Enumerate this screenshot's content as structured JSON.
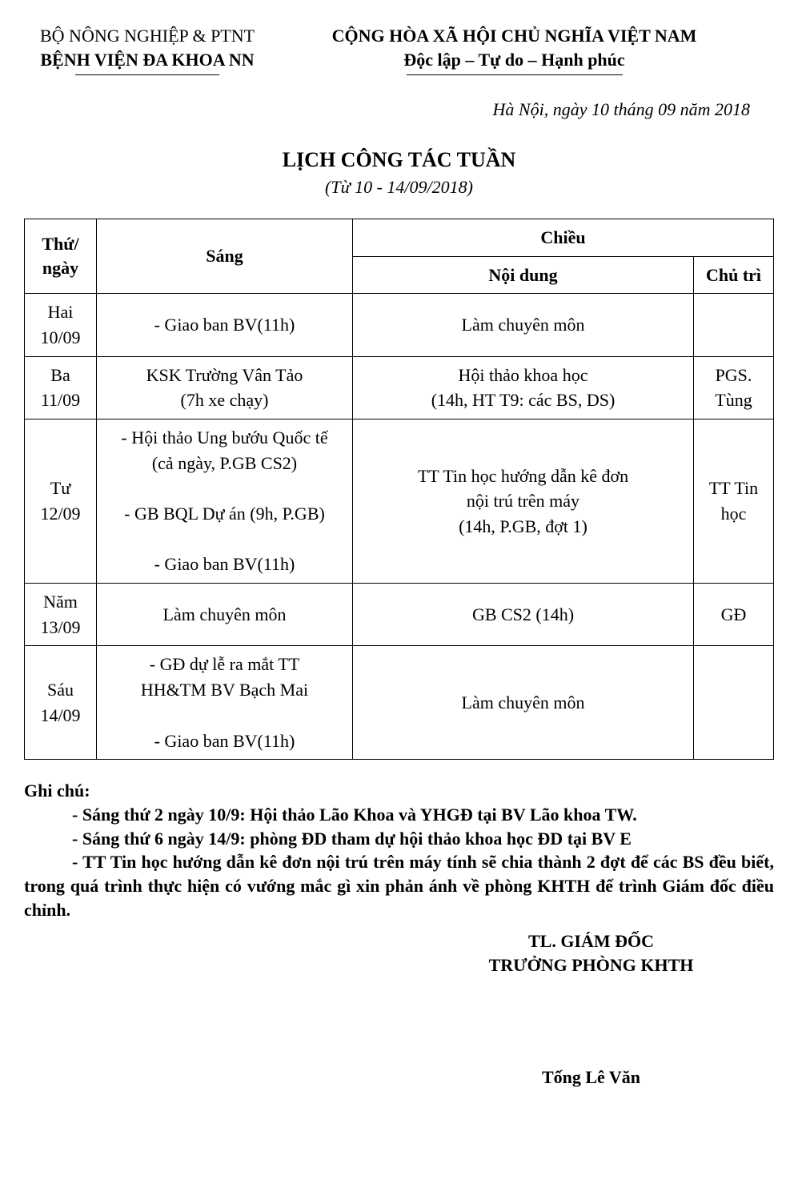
{
  "header": {
    "left_line1": "BỘ NÔNG NGHIỆP & PTNT",
    "left_line2": "BỆNH VIỆN ĐA KHOA NN",
    "right_line1": "CỘNG HÒA XÃ HỘI CHỦ NGHĨA VIỆT NAM",
    "right_line2": "Độc lập – Tự do – Hạnh phúc"
  },
  "date_line": "Hà Nội, ngày 10 tháng 09 năm 2018",
  "title": "LỊCH CÔNG TÁC TUẦN",
  "subtitle": "(Từ 10 - 14/09/2018)",
  "table": {
    "headers": {
      "day": "Thứ/ ngày",
      "sang": "Sáng",
      "chieu": "Chiều",
      "noidung": "Nội dung",
      "chutri": "Chủ trì"
    },
    "rows": [
      {
        "day_l1": "Hai",
        "day_l2": "10/09",
        "sang": [
          "- Giao ban BV(11h)"
        ],
        "noidung": [
          "Làm chuyên môn"
        ],
        "chutri": [
          ""
        ]
      },
      {
        "day_l1": "Ba",
        "day_l2": "11/09",
        "sang": [
          "KSK Trường Vân Tảo",
          "(7h xe chạy)"
        ],
        "noidung": [
          "Hội thảo khoa học",
          "(14h, HT T9: các BS, DS)"
        ],
        "chutri": [
          "PGS.",
          "Tùng"
        ]
      },
      {
        "day_l1": "Tư",
        "day_l2": "12/09",
        "sang": [
          "- Hội thảo Ung bướu Quốc tế",
          "(cả ngày, P.GB CS2)",
          "",
          "- GB BQL Dự án (9h, P.GB)",
          "",
          "- Giao ban BV(11h)"
        ],
        "noidung": [
          "TT Tin học hướng dẫn kê đơn",
          "nội trú trên máy",
          "(14h, P.GB, đợt 1)"
        ],
        "chutri": [
          "TT Tin",
          "học"
        ]
      },
      {
        "day_l1": "Năm",
        "day_l2": "13/09",
        "sang": [
          "Làm chuyên môn"
        ],
        "noidung": [
          "GB CS2 (14h)"
        ],
        "chutri": [
          "GĐ"
        ]
      },
      {
        "day_l1": "Sáu",
        "day_l2": "14/09",
        "sang": [
          "- GĐ dự lễ ra mắt TT",
          "HH&TM BV Bạch Mai",
          "",
          "- Giao ban BV(11h)"
        ],
        "noidung": [
          "Làm chuyên môn"
        ],
        "chutri": [
          ""
        ]
      }
    ]
  },
  "notes": {
    "title": "Ghi chú:",
    "items": [
      "- Sáng thứ 2 ngày 10/9: Hội thảo Lão Khoa và YHGĐ tại BV Lão khoa TW.",
      "- Sáng thứ 6 ngày 14/9: phòng ĐD tham dự hội thảo khoa học ĐD tại BV E",
      "- TT Tin học hướng dẫn kê đơn nội trú trên máy tính sẽ chia thành 2 đợt để các BS đều biết, trong quá trình thực hiện có vướng mắc gì xin phản ánh về phòng KHTH để trình Giám đốc điều chỉnh."
    ]
  },
  "signature": {
    "line1": "TL. GIÁM ĐỐC",
    "line2": "TRƯỞNG PHÒNG KHTH",
    "name": "Tống Lê Văn"
  }
}
